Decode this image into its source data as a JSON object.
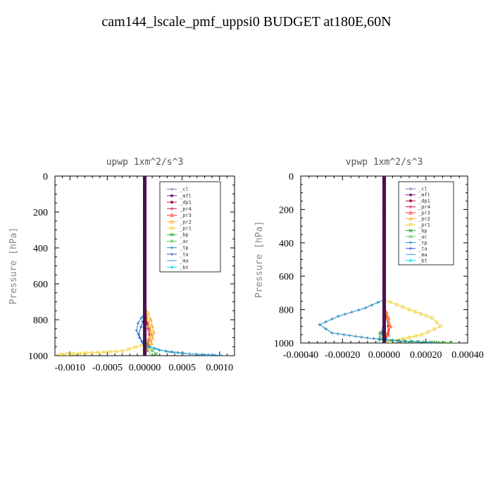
{
  "title": "cam144_lscale_pmf_uppsi0  BUDGET at180E,60N",
  "legend_entries": [
    {
      "label": "_cl",
      "color": "#8c6bb1",
      "marker": "+"
    },
    {
      "label": "_mfl",
      "color": "#7b1a7b",
      "marker": "dot"
    },
    {
      "label": "_dp1",
      "color": "#a8123e",
      "marker": "dot"
    },
    {
      "label": "_pr4",
      "color": "#c2185b",
      "marker": "+"
    },
    {
      "label": "_pr3",
      "color": "#ff3b3b",
      "marker": "tri"
    },
    {
      "label": "_pr2",
      "color": "#ffa52e",
      "marker": "tri"
    },
    {
      "label": "_pr1",
      "color": "#f2cf2a",
      "marker": "sq"
    },
    {
      "label": "_bp",
      "color": "#2eaa2e",
      "marker": "x"
    },
    {
      "label": "_ac",
      "color": "#63d163",
      "marker": "x"
    },
    {
      "label": "_tp",
      "color": "#1f8bc7",
      "marker": "+"
    },
    {
      "label": "_ta",
      "color": "#3355cc",
      "marker": "+"
    },
    {
      "label": "_ma",
      "color": "#33aadd",
      "marker": "dash"
    },
    {
      "label": "_bt",
      "color": "#00e0f0",
      "marker": "diamond"
    }
  ],
  "chart_data": [
    {
      "type": "line",
      "title": "upwp   1xm^2/s^3",
      "ylabel": "Pressure [hPa]",
      "xlabel": "",
      "xlim": [
        -0.0012,
        0.0012
      ],
      "ylim": [
        1000,
        0
      ],
      "xticks": [
        -0.001,
        -0.0005,
        0.0,
        0.0005,
        0.001
      ],
      "xtick_labels": [
        "-0.0010",
        "-0.0005",
        "0.00000",
        "0.0005",
        "0.0010"
      ],
      "yticks": [
        0,
        200,
        400,
        600,
        800,
        1000
      ],
      "ytick_labels": [
        "0",
        "200",
        "400",
        "600",
        "800",
        "1000"
      ],
      "legend": "upper-right",
      "series": [
        {
          "name": "_cl",
          "x": [
            0.0,
            0.0,
            0.0
          ],
          "y": [
            0,
            500,
            1000
          ]
        },
        {
          "name": "_mfl",
          "x": [
            0.0,
            0.0,
            0.0
          ],
          "y": [
            0,
            500,
            1000
          ]
        },
        {
          "name": "_dp1",
          "x": [
            0.0,
            0.0,
            0.0
          ],
          "y": [
            0,
            500,
            1000
          ]
        },
        {
          "name": "_pr4",
          "x": [
            0.0,
            0.0,
            3e-05,
            6e-05,
            4e-05,
            0.0
          ],
          "y": [
            0,
            740,
            820,
            880,
            940,
            1000
          ]
        },
        {
          "name": "_pr3",
          "x": [
            0.0,
            0.0,
            4e-05,
            8e-05,
            5e-05,
            0.0
          ],
          "y": [
            0,
            740,
            820,
            880,
            940,
            1000
          ]
        },
        {
          "name": "_pr2",
          "x": [
            0.0,
            0.0,
            8e-05,
            0.00012,
            9e-05,
            0.0
          ],
          "y": [
            0,
            720,
            800,
            870,
            930,
            990
          ]
        },
        {
          "name": "_pr1",
          "x": [
            0.0,
            0.0,
            5e-05,
            9e-05,
            5e-05,
            -0.0003,
            -0.0012
          ],
          "y": [
            0,
            730,
            800,
            870,
            930,
            975,
            995
          ]
        },
        {
          "name": "_bp",
          "x": [
            0.0,
            0.0,
            5e-05,
            0.00015,
            0.0001
          ],
          "y": [
            0,
            900,
            950,
            990,
            1000
          ]
        },
        {
          "name": "_ac",
          "x": [
            0.0,
            0.0,
            3e-05,
            8e-05
          ],
          "y": [
            0,
            900,
            960,
            995
          ]
        },
        {
          "name": "_tp",
          "x": [
            0.0,
            0.0,
            -9e-05,
            -0.00011,
            -7e-05,
            0.0,
            0.0002,
            0.0006,
            0.0011
          ],
          "y": [
            0,
            760,
            820,
            860,
            900,
            940,
            970,
            990,
            1000
          ]
        },
        {
          "name": "_ta",
          "x": [
            0.0,
            0.0,
            -5e-05,
            -8e-05,
            -4e-05,
            0.0
          ],
          "y": [
            0,
            780,
            840,
            880,
            920,
            960
          ]
        },
        {
          "name": "_ma",
          "x": [
            0.0,
            0.0,
            0.0003,
            0.0009
          ],
          "y": [
            0,
            940,
            980,
            1000
          ]
        },
        {
          "name": "_bt",
          "x": [
            0.0,
            0.0,
            0.0
          ],
          "y": [
            0,
            500,
            1000
          ]
        }
      ]
    },
    {
      "type": "line",
      "title": "vpwp   1xm^2/s^3",
      "ylabel": "Pressure [hPa]",
      "xlabel": "",
      "xlim": [
        -0.0004,
        0.0004
      ],
      "ylim": [
        1000,
        0
      ],
      "xticks": [
        -0.0004,
        -0.0002,
        0.0,
        0.0002,
        0.0004
      ],
      "xtick_labels": [
        "-0.00040",
        "-0.00020",
        "0.00000",
        "0.00020",
        "0.00040"
      ],
      "yticks": [
        0,
        200,
        400,
        600,
        800,
        1000
      ],
      "ytick_labels": [
        "0",
        "200",
        "400",
        "600",
        "800",
        "1000"
      ],
      "legend": "upper-right",
      "series": [
        {
          "name": "_cl",
          "x": [
            0.0,
            0.0,
            0.0
          ],
          "y": [
            0,
            500,
            1000
          ]
        },
        {
          "name": "_mfl",
          "x": [
            0.0,
            0.0,
            0.0
          ],
          "y": [
            0,
            500,
            1000
          ]
        },
        {
          "name": "_dp1",
          "x": [
            0.0,
            0.0,
            1.2e-05,
            2e-05,
            1.4e-05,
            0.0
          ],
          "y": [
            0,
            780,
            850,
            900,
            950,
            1000
          ]
        },
        {
          "name": "_pr4",
          "x": [
            0.0,
            0.0,
            1.5e-05,
            2.5e-05,
            1.8e-05,
            0.0
          ],
          "y": [
            0,
            780,
            850,
            900,
            950,
            1000
          ]
        },
        {
          "name": "_pr3",
          "x": [
            0.0,
            0.0,
            2e-05,
            3e-05,
            2e-05,
            0.0
          ],
          "y": [
            0,
            780,
            850,
            900,
            950,
            1000
          ]
        },
        {
          "name": "_pr2",
          "x": [
            0.0,
            0.0,
            1.5e-05,
            2.5e-05,
            1e-05,
            0.0
          ],
          "y": [
            0,
            780,
            850,
            900,
            950,
            1000
          ]
        },
        {
          "name": "_pr1",
          "x": [
            0.0,
            0.0,
            0.00012,
            0.00023,
            0.00027,
            0.00018,
            0.0
          ],
          "y": [
            0,
            740,
            800,
            850,
            900,
            950,
            1000
          ]
        },
        {
          "name": "_bp",
          "x": [
            0.0,
            0.0,
            -2e-05,
            -2.5e-05,
            0.0001,
            0.00035
          ],
          "y": [
            0,
            900,
            940,
            980,
            990,
            1000
          ]
        },
        {
          "name": "_ac",
          "x": [
            0.0,
            0.0,
            -1.5e-05,
            0.0
          ],
          "y": [
            0,
            920,
            960,
            1000
          ]
        },
        {
          "name": "_tp",
          "x": [
            0.0,
            0.0,
            -9e-05,
            -0.00022,
            -0.00031,
            -0.00025,
            -8e-05,
            0.0001,
            0.00025
          ],
          "y": [
            0,
            740,
            790,
            840,
            890,
            940,
            970,
            990,
            1000
          ]
        },
        {
          "name": "_ta",
          "x": [
            0.0,
            0.0,
            -1e-05,
            0.0
          ],
          "y": [
            0,
            880,
            940,
            1000
          ]
        },
        {
          "name": "_ma",
          "x": [
            0.0,
            0.0,
            0.0
          ],
          "y": [
            0,
            500,
            1000
          ]
        },
        {
          "name": "_bt",
          "x": [
            0.0,
            0.0,
            0.0
          ],
          "y": [
            0,
            500,
            1000
          ]
        }
      ]
    }
  ]
}
